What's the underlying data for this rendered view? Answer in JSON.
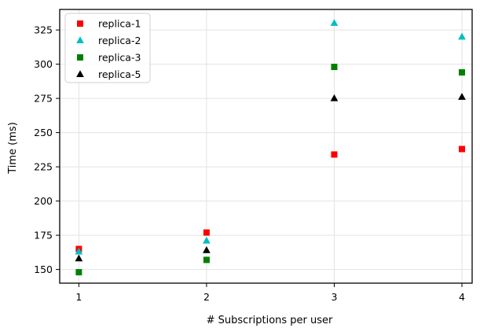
{
  "chart_data": {
    "type": "scatter",
    "xlabel": "# Subscriptions per user",
    "ylabel": "Time (ms)",
    "x": [
      1,
      2,
      3,
      4
    ],
    "x_ticks": [
      1,
      2,
      3,
      4
    ],
    "y_ticks": [
      150,
      175,
      200,
      225,
      250,
      275,
      300,
      325
    ],
    "xlim": [
      0.85,
      4.08
    ],
    "ylim": [
      140,
      340
    ],
    "grid": true,
    "legend_position": "top-left",
    "series": [
      {
        "name": "replica-1",
        "marker": "square",
        "color": "#ff0000",
        "values": [
          165,
          177,
          234,
          238
        ]
      },
      {
        "name": "replica-2",
        "marker": "triangle",
        "color": "#00bfbf",
        "values": [
          163,
          171,
          330,
          320
        ]
      },
      {
        "name": "replica-3",
        "marker": "square",
        "color": "#008000",
        "values": [
          148,
          157,
          298,
          294
        ]
      },
      {
        "name": "replica-5",
        "marker": "triangle",
        "color": "#000000",
        "values": [
          158,
          164,
          275,
          276
        ]
      }
    ]
  }
}
